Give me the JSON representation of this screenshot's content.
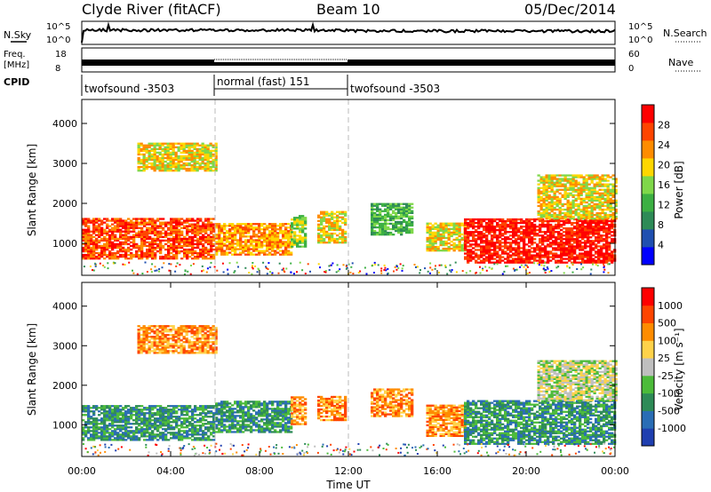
{
  "header": {
    "station": "Clyde River (fitACF)",
    "beam": "Beam 10",
    "date": "05/Dec/2014"
  },
  "top_panels": {
    "nsky_label": "N.Sky",
    "nsearch_label": "N.Search",
    "nsky_ticks": [
      "10^5",
      "10^0"
    ],
    "freq_label_1": "Freq.",
    "freq_label_2": "[MHz]",
    "freq_ticks": [
      "18",
      "8"
    ],
    "nave_label": "Nave",
    "nave_ticks": [
      "60",
      "0"
    ],
    "cpid_label": "CPID",
    "cpid_segments": [
      {
        "label": "twofsound -3503",
        "start": 0,
        "end": 6
      },
      {
        "label": "normal (fast) 151",
        "start": 6,
        "end": 12
      },
      {
        "label": "twofsound -3503",
        "start": 12,
        "end": 24
      }
    ]
  },
  "x_axis": {
    "label": "Time UT",
    "ticks": [
      "00:00",
      "04:00",
      "08:00",
      "12:00",
      "16:00",
      "20:00",
      "00:00"
    ],
    "range_hours": [
      0,
      24
    ]
  },
  "chart_data": [
    {
      "type": "heatmap",
      "name": "power",
      "ylabel": "Slant Range [km]",
      "yticks": [
        "1000",
        "2000",
        "3000",
        "4000"
      ],
      "ylim": [
        200,
        4600
      ],
      "colorbar_label": "Power [dB]",
      "colorbar_ticks": [
        "28",
        "24",
        "20",
        "16",
        "12",
        "8",
        "4"
      ],
      "colors": [
        "#0000ff",
        "#1f4fb0",
        "#2e8b57",
        "#3cb043",
        "#7fd84a",
        "#ffd700",
        "#ff8c00",
        "#ff4500",
        "#ff0000"
      ],
      "regions": [
        {
          "t": [
            0.0,
            6.0
          ],
          "r": [
            600,
            1600
          ],
          "level": 7
        },
        {
          "t": [
            2.5,
            6.0
          ],
          "r": [
            2800,
            3500
          ],
          "level": 5
        },
        {
          "t": [
            6.0,
            9.4
          ],
          "r": [
            700,
            1500
          ],
          "level": 6
        },
        {
          "t": [
            9.4,
            10.0
          ],
          "r": [
            900,
            1700
          ],
          "level": 4
        },
        {
          "t": [
            10.6,
            11.8
          ],
          "r": [
            1000,
            1800
          ],
          "level": 5
        },
        {
          "t": [
            13.0,
            14.8
          ],
          "r": [
            1200,
            2000
          ],
          "level": 3
        },
        {
          "t": [
            15.5,
            17.2
          ],
          "r": [
            800,
            1500
          ],
          "level": 5
        },
        {
          "t": [
            17.2,
            24.0
          ],
          "r": [
            500,
            1600
          ],
          "level": 8
        },
        {
          "t": [
            20.5,
            24.0
          ],
          "r": [
            1600,
            2700
          ],
          "level": 5
        }
      ]
    },
    {
      "type": "heatmap",
      "name": "velocity",
      "ylabel": "Slant Range [km]",
      "yticks": [
        "1000",
        "2000",
        "3000",
        "4000"
      ],
      "ylim": [
        200,
        4600
      ],
      "colorbar_label": "Velocity [m s⁻¹]",
      "colorbar_ticks": [
        "1000",
        "500",
        "100",
        "25",
        "-25",
        "-100",
        "-500",
        "-1000"
      ],
      "colors": [
        "#1f3fb0",
        "#2a6db5",
        "#2e8b57",
        "#4cbb3a",
        "#bfbfbf",
        "#ffd24a",
        "#ff8c00",
        "#ff4500",
        "#ff0000"
      ],
      "regions": [
        {
          "t": [
            0.0,
            6.0
          ],
          "r": [
            600,
            1500
          ],
          "level": 2
        },
        {
          "t": [
            2.5,
            6.0
          ],
          "r": [
            2800,
            3500
          ],
          "level": 6
        },
        {
          "t": [
            6.0,
            9.4
          ],
          "r": [
            800,
            1600
          ],
          "level": 2
        },
        {
          "t": [
            9.4,
            10.0
          ],
          "r": [
            1000,
            1700
          ],
          "level": 6
        },
        {
          "t": [
            10.6,
            11.8
          ],
          "r": [
            1100,
            1700
          ],
          "level": 6
        },
        {
          "t": [
            13.0,
            14.8
          ],
          "r": [
            1200,
            1900
          ],
          "level": 6
        },
        {
          "t": [
            15.5,
            17.2
          ],
          "r": [
            700,
            1500
          ],
          "level": 6
        },
        {
          "t": [
            17.2,
            24.0
          ],
          "r": [
            500,
            1600
          ],
          "level": 2
        },
        {
          "t": [
            20.5,
            24.0
          ],
          "r": [
            1600,
            2600
          ],
          "level": 4
        }
      ]
    }
  ]
}
